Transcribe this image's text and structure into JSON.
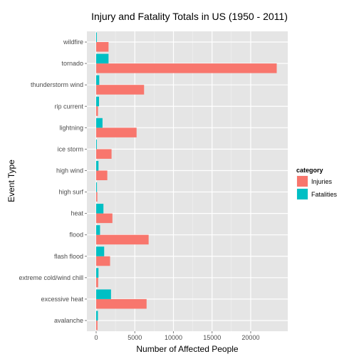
{
  "chart_data": {
    "type": "bar",
    "orientation": "horizontal",
    "title": "Injury and Fatality Totals in US (1950 - 2011)",
    "xlabel": "Number of Affected People",
    "ylabel": "Event Type",
    "xlim": [
      -1200,
      24800
    ],
    "x_ticks": [
      0,
      5000,
      10000,
      15000,
      20000
    ],
    "grid": true,
    "legend_position": "right",
    "legend_title": "category",
    "categories": [
      "avalanche",
      "excessive heat",
      "extreme cold/wind chill",
      "flash flood",
      "flood",
      "heat",
      "high surf",
      "high wind",
      "ice storm",
      "lightning",
      "rip current",
      "thunderstorm wind",
      "tornado",
      "wildfire"
    ],
    "series": [
      {
        "name": "Injuries",
        "color": "#F8766D",
        "values": [
          170,
          6525,
          255,
          1800,
          6790,
          2100,
          150,
          1440,
          1990,
          5230,
          230,
          6200,
          23370,
          1600
        ]
      },
      {
        "name": "Fatalities",
        "color": "#00BFC4",
        "values": [
          224,
          1920,
          300,
          1035,
          500,
          940,
          100,
          300,
          90,
          820,
          370,
          400,
          1600,
          90
        ]
      }
    ]
  }
}
